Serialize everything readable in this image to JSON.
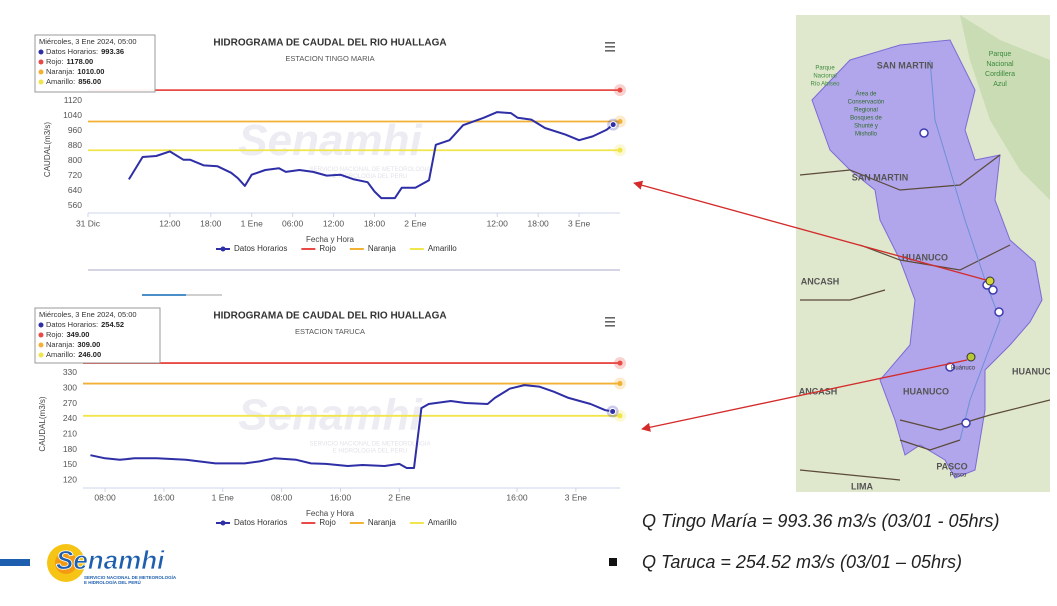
{
  "chart_data": [
    {
      "type": "line",
      "title": "HIDROGRAMA DE CAUDAL DEL RIO HUALLAGA",
      "subtitle": "ESTACION TINGO MARIA",
      "y_label": "CAUDAL(m3/s)",
      "x_label": "Fecha y Hora",
      "x": [
        6,
        8,
        10,
        12,
        14,
        15,
        17,
        19,
        21,
        22,
        23,
        24,
        26,
        28,
        29,
        31,
        33,
        35,
        37,
        39,
        41,
        42,
        43,
        45,
        46,
        48,
        50,
        51,
        53,
        55,
        58,
        60,
        62,
        63,
        65,
        67,
        70,
        72,
        74,
        76,
        77
      ],
      "xlim": [
        0,
        78
      ],
      "xticks": [
        {
          "value": 0,
          "label": "31 Dic"
        },
        {
          "value": 12,
          "label": "12:00"
        },
        {
          "value": 18,
          "label": "18:00"
        },
        {
          "value": 24,
          "label": "1 Ene"
        },
        {
          "value": 30,
          "label": "06:00"
        },
        {
          "value": 36,
          "label": "12:00"
        },
        {
          "value": 42,
          "label": "18:00"
        },
        {
          "value": 48,
          "label": "2 Ene"
        },
        {
          "value": 60,
          "label": "12:00"
        },
        {
          "value": 66,
          "label": "18:00"
        },
        {
          "value": 72,
          "label": "3 Ene"
        }
      ],
      "ylim": [
        520,
        1200
      ],
      "yticks": [
        560,
        640,
        720,
        800,
        880,
        960,
        1040,
        1120
      ],
      "grid": false,
      "series": [
        {
          "name": "Datos Horarios",
          "color": "#2e2ea6",
          "values": [
            700,
            820,
            825,
            850,
            805,
            805,
            775,
            770,
            735,
            705,
            665,
            725,
            750,
            760,
            740,
            750,
            740,
            720,
            725,
            700,
            685,
            635,
            600,
            600,
            655,
            655,
            695,
            885,
            910,
            990,
            1030,
            1060,
            1055,
            1030,
            1020,
            975,
            940,
            910,
            930,
            965,
            993.36
          ]
        }
      ],
      "thresholds": [
        {
          "name": "Rojo",
          "color": "#e84a45",
          "value": 1178
        },
        {
          "name": "Naranja",
          "color": "#f2b134",
          "value": 1010
        },
        {
          "name": "Amarillo",
          "color": "#f0e54a",
          "value": 856
        }
      ],
      "tooltip": {
        "header": "Miércoles, 3 Ene 2024, 05:00",
        "rows": [
          {
            "label": "Datos Horarios:",
            "value": 993.36
          },
          {
            "label": "Rojo:",
            "value": 1178,
            "value_label": "1178.00"
          },
          {
            "label": "Naranja:",
            "value": 1010,
            "value_label": "1010.00"
          },
          {
            "label": "Amarillo:",
            "value": 856,
            "value_label": "856.00"
          }
        ]
      }
    },
    {
      "type": "line",
      "title": "HIDROGRAMA DE CAUDAL DEL RIO HUALLAGA",
      "subtitle": "ESTACION TARUCA",
      "y_label": "CAUDAL(m3/s)",
      "x_label": "Fecha y Hora",
      "x": [
        6,
        8,
        10,
        12,
        15,
        19,
        23,
        27,
        29,
        31,
        34,
        36,
        38,
        41,
        43,
        46,
        48,
        49,
        50,
        51,
        52,
        55,
        57,
        60,
        61,
        63,
        65,
        67,
        69,
        71,
        74,
        76,
        77
      ],
      "xlim": [
        5,
        78
      ],
      "xticks": [
        {
          "value": 8,
          "label": "08:00"
        },
        {
          "value": 16,
          "label": "16:00"
        },
        {
          "value": 24,
          "label": "1 Ene"
        },
        {
          "value": 32,
          "label": "08:00"
        },
        {
          "value": 40,
          "label": "16:00"
        },
        {
          "value": 48,
          "label": "2 Ene"
        },
        {
          "value": 64,
          "label": "16:00"
        },
        {
          "value": 72,
          "label": "3 Ene"
        }
      ],
      "ylim": [
        105,
        355
      ],
      "yticks": [
        120,
        150,
        180,
        210,
        240,
        270,
        300,
        330
      ],
      "grid": false,
      "series": [
        {
          "name": "Datos Horarios",
          "color": "#2e2ea6",
          "values": [
            169,
            163,
            160,
            163,
            163,
            160,
            153,
            153,
            157,
            163,
            160,
            153,
            152,
            148,
            150,
            148,
            152,
            144,
            144,
            261,
            269,
            275,
            271,
            269,
            281,
            299,
            306,
            303,
            293,
            281,
            269,
            257,
            254.52
          ]
        }
      ],
      "thresholds": [
        {
          "name": "Rojo",
          "color": "#e84a45",
          "value": 349
        },
        {
          "name": "Naranja",
          "color": "#f2b134",
          "value": 309
        },
        {
          "name": "Amarillo",
          "color": "#f0e54a",
          "value": 246
        }
      ],
      "tooltip": {
        "header": "Miércoles, 3 Ene 2024, 05:00",
        "rows": [
          {
            "label": "Datos Horarios:",
            "value": 254.52
          },
          {
            "label": "Rojo:",
            "value": 349,
            "value_label": "349.00"
          },
          {
            "label": "Naranja:",
            "value": 309,
            "value_label": "309.00"
          },
          {
            "label": "Amarillo:",
            "value": 246,
            "value_label": "246.00"
          }
        ]
      }
    }
  ],
  "watermark": {
    "name": "Senamhi",
    "subtitle": [
      "SERVICIO NACIONAL DE METEOROLOGIA",
      "E HIDROLOGIA DEL PERU"
    ]
  },
  "map": {
    "labels": [
      "SAN MARTIN",
      "Parque",
      "Nacional",
      "Cordillera",
      "Azul",
      "Parque",
      "Nacional",
      "Río Abiseo",
      "Área de",
      "Conservación",
      "Regional",
      "Bosques de",
      "Shunté y",
      "Mishollo",
      "SAN MARTIN",
      "HUANUCO",
      "ANCASH",
      "ANCASH",
      "HUANUCO",
      "HUANUCO",
      "Huánuco",
      "PASCO",
      "Pasco",
      "LIMA"
    ]
  },
  "notes": [
    "Q Tingo María = 993.36 m3/s (03/01 - 05hrs)",
    "Q Taruca = 254.52 m3/s (03/01 – 05hrs)"
  ],
  "logo": {
    "name": "Senamhi",
    "subtitle": [
      "SERVICIO NACIONAL DE METEOROLOGÍA",
      "E HIDROLOGÍA DEL PERÚ"
    ]
  }
}
